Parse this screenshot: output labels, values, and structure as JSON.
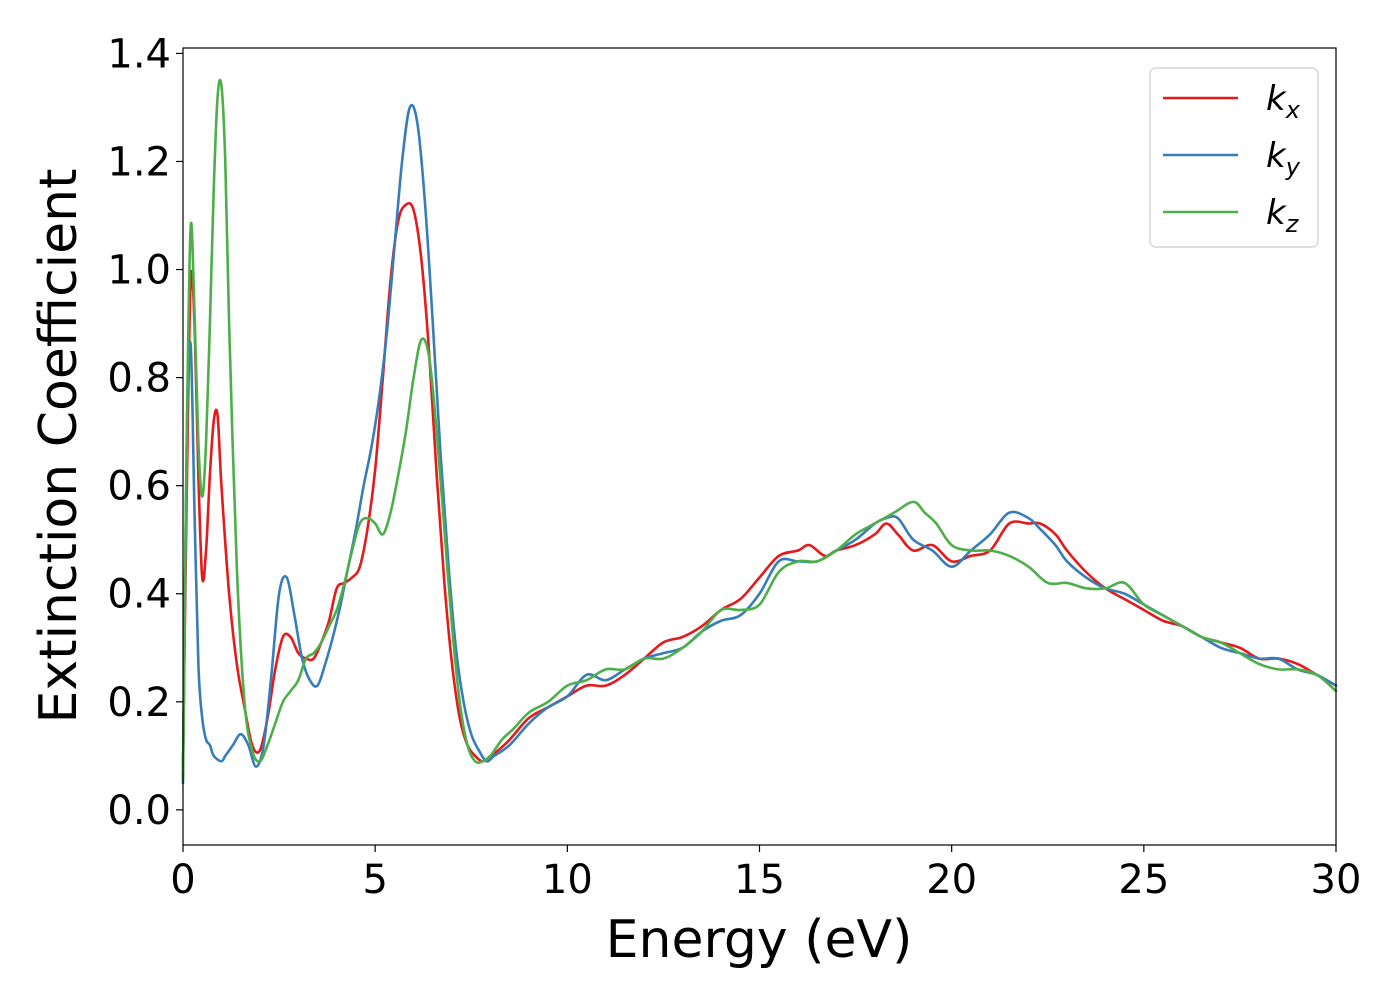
{
  "chart_data": {
    "type": "line",
    "title": "",
    "xlabel": "Energy (eV)",
    "ylabel": "Extinction Coefficient",
    "xlim": [
      0,
      30
    ],
    "ylim": [
      -0.065,
      1.41
    ],
    "xticks": [
      0,
      5,
      10,
      15,
      20,
      25,
      30
    ],
    "yticks": [
      0.0,
      0.2,
      0.4,
      0.6,
      0.8,
      1.0,
      1.2,
      1.4
    ],
    "grid": false,
    "legend_position": "top-right",
    "series": [
      {
        "name": "k_x",
        "label_base": "k",
        "label_sub": "x",
        "color": "#e41a1c",
        "x": [
          0,
          0.1,
          0.2,
          0.3,
          0.4,
          0.5,
          0.6,
          0.7,
          0.8,
          0.9,
          1.0,
          1.2,
          1.4,
          1.6,
          1.8,
          2.0,
          2.2,
          2.4,
          2.6,
          2.8,
          3.0,
          3.2,
          3.4,
          3.6,
          3.8,
          4.0,
          4.2,
          4.4,
          4.6,
          4.8,
          5.0,
          5.2,
          5.4,
          5.6,
          5.8,
          6.0,
          6.2,
          6.4,
          6.6,
          6.8,
          7.0,
          7.2,
          7.4,
          7.6,
          7.8,
          8.0,
          8.2,
          8.5,
          9.0,
          9.5,
          10.0,
          10.5,
          11.0,
          11.5,
          12.0,
          12.5,
          13.0,
          13.5,
          14.0,
          14.5,
          15.0,
          15.5,
          16.0,
          16.3,
          16.7,
          17.0,
          17.5,
          18.0,
          18.3,
          18.6,
          19.0,
          19.5,
          20.0,
          20.5,
          21.0,
          21.5,
          22.0,
          22.3,
          22.7,
          23.0,
          23.5,
          24.0,
          24.5,
          25.0,
          25.5,
          26.0,
          26.5,
          27.0,
          27.5,
          28.0,
          28.5,
          29.0,
          29.5,
          30.0
        ],
        "y": [
          0.08,
          0.6,
          0.98,
          0.9,
          0.62,
          0.43,
          0.48,
          0.62,
          0.72,
          0.73,
          0.6,
          0.4,
          0.27,
          0.19,
          0.12,
          0.11,
          0.17,
          0.26,
          0.32,
          0.32,
          0.29,
          0.28,
          0.28,
          0.31,
          0.35,
          0.41,
          0.42,
          0.43,
          0.45,
          0.52,
          0.63,
          0.8,
          0.98,
          1.09,
          1.12,
          1.11,
          1.02,
          0.85,
          0.62,
          0.42,
          0.27,
          0.17,
          0.12,
          0.1,
          0.09,
          0.1,
          0.11,
          0.13,
          0.17,
          0.19,
          0.21,
          0.23,
          0.23,
          0.25,
          0.28,
          0.31,
          0.32,
          0.34,
          0.37,
          0.39,
          0.43,
          0.47,
          0.48,
          0.49,
          0.47,
          0.48,
          0.49,
          0.51,
          0.53,
          0.51,
          0.48,
          0.49,
          0.46,
          0.47,
          0.48,
          0.53,
          0.53,
          0.53,
          0.51,
          0.48,
          0.44,
          0.41,
          0.39,
          0.37,
          0.35,
          0.34,
          0.32,
          0.31,
          0.3,
          0.28,
          0.28,
          0.27,
          0.25,
          0.23
        ]
      },
      {
        "name": "k_y",
        "label_base": "k",
        "label_sub": "y",
        "color": "#377eb8",
        "x": [
          0,
          0.1,
          0.2,
          0.3,
          0.4,
          0.5,
          0.6,
          0.7,
          0.8,
          1.0,
          1.1,
          1.3,
          1.5,
          1.7,
          1.9,
          2.1,
          2.3,
          2.5,
          2.7,
          2.9,
          3.1,
          3.3,
          3.5,
          3.7,
          3.9,
          4.1,
          4.3,
          4.5,
          4.7,
          4.9,
          5.1,
          5.3,
          5.5,
          5.7,
          5.9,
          6.1,
          6.3,
          6.5,
          6.7,
          6.9,
          7.1,
          7.3,
          7.5,
          7.7,
          7.9,
          8.1,
          8.5,
          9.0,
          9.5,
          10.0,
          10.5,
          11.0,
          11.5,
          12.0,
          12.5,
          13.0,
          13.5,
          14.0,
          14.5,
          15.0,
          15.5,
          16.0,
          16.5,
          17.0,
          17.5,
          18.0,
          18.3,
          18.6,
          19.0,
          19.5,
          20.0,
          20.5,
          21.0,
          21.5,
          22.0,
          22.3,
          22.7,
          23.0,
          23.5,
          24.0,
          24.5,
          25.0,
          25.5,
          26.0,
          26.5,
          27.0,
          27.5,
          28.0,
          28.5,
          29.0,
          29.5,
          30.0
        ],
        "y": [
          0.05,
          0.7,
          0.86,
          0.55,
          0.27,
          0.17,
          0.13,
          0.12,
          0.1,
          0.09,
          0.1,
          0.12,
          0.14,
          0.12,
          0.08,
          0.12,
          0.25,
          0.4,
          0.43,
          0.36,
          0.28,
          0.24,
          0.23,
          0.27,
          0.32,
          0.38,
          0.45,
          0.52,
          0.6,
          0.67,
          0.76,
          0.88,
          1.04,
          1.2,
          1.3,
          1.27,
          1.12,
          0.9,
          0.66,
          0.46,
          0.3,
          0.2,
          0.14,
          0.11,
          0.09,
          0.1,
          0.12,
          0.16,
          0.19,
          0.21,
          0.25,
          0.24,
          0.26,
          0.28,
          0.29,
          0.3,
          0.33,
          0.35,
          0.36,
          0.4,
          0.46,
          0.46,
          0.46,
          0.48,
          0.5,
          0.53,
          0.54,
          0.54,
          0.5,
          0.48,
          0.45,
          0.48,
          0.51,
          0.55,
          0.54,
          0.52,
          0.49,
          0.46,
          0.43,
          0.41,
          0.4,
          0.38,
          0.36,
          0.34,
          0.32,
          0.3,
          0.29,
          0.28,
          0.28,
          0.26,
          0.25,
          0.23
        ]
      },
      {
        "name": "k_z",
        "label_base": "k",
        "label_sub": "z",
        "color": "#4daf4a",
        "x": [
          0,
          0.1,
          0.2,
          0.3,
          0.4,
          0.5,
          0.6,
          0.7,
          0.8,
          0.9,
          1.0,
          1.1,
          1.2,
          1.4,
          1.6,
          1.8,
          2.0,
          2.2,
          2.4,
          2.6,
          2.8,
          3.0,
          3.2,
          3.4,
          3.6,
          3.8,
          4.0,
          4.2,
          4.4,
          4.6,
          4.8,
          5.0,
          5.2,
          5.4,
          5.6,
          5.8,
          6.0,
          6.2,
          6.4,
          6.6,
          6.8,
          7.0,
          7.2,
          7.4,
          7.6,
          7.8,
          8.0,
          8.3,
          8.6,
          9.0,
          9.5,
          10.0,
          10.5,
          11.0,
          11.5,
          12.0,
          12.5,
          13.0,
          13.5,
          14.0,
          14.5,
          15.0,
          15.5,
          16.0,
          16.5,
          17.0,
          17.5,
          18.0,
          18.5,
          19.0,
          19.3,
          19.6,
          20.0,
          20.5,
          21.0,
          21.5,
          22.0,
          22.5,
          23.0,
          23.5,
          24.0,
          24.5,
          25.0,
          25.5,
          26.0,
          26.5,
          27.0,
          27.5,
          28.0,
          28.5,
          29.0,
          29.5,
          30.0
        ],
        "y": [
          0.06,
          0.7,
          1.08,
          0.92,
          0.68,
          0.58,
          0.68,
          0.9,
          1.15,
          1.32,
          1.34,
          1.2,
          0.9,
          0.45,
          0.2,
          0.11,
          0.09,
          0.12,
          0.16,
          0.2,
          0.22,
          0.24,
          0.28,
          0.29,
          0.31,
          0.34,
          0.37,
          0.42,
          0.48,
          0.53,
          0.54,
          0.53,
          0.51,
          0.55,
          0.62,
          0.7,
          0.8,
          0.87,
          0.84,
          0.7,
          0.52,
          0.34,
          0.2,
          0.12,
          0.09,
          0.09,
          0.1,
          0.13,
          0.15,
          0.18,
          0.2,
          0.23,
          0.24,
          0.26,
          0.26,
          0.28,
          0.28,
          0.3,
          0.33,
          0.37,
          0.37,
          0.38,
          0.44,
          0.46,
          0.46,
          0.48,
          0.51,
          0.53,
          0.55,
          0.57,
          0.55,
          0.53,
          0.49,
          0.48,
          0.48,
          0.47,
          0.45,
          0.42,
          0.42,
          0.41,
          0.41,
          0.42,
          0.38,
          0.36,
          0.34,
          0.32,
          0.31,
          0.29,
          0.27,
          0.26,
          0.26,
          0.25,
          0.22
        ]
      }
    ]
  }
}
